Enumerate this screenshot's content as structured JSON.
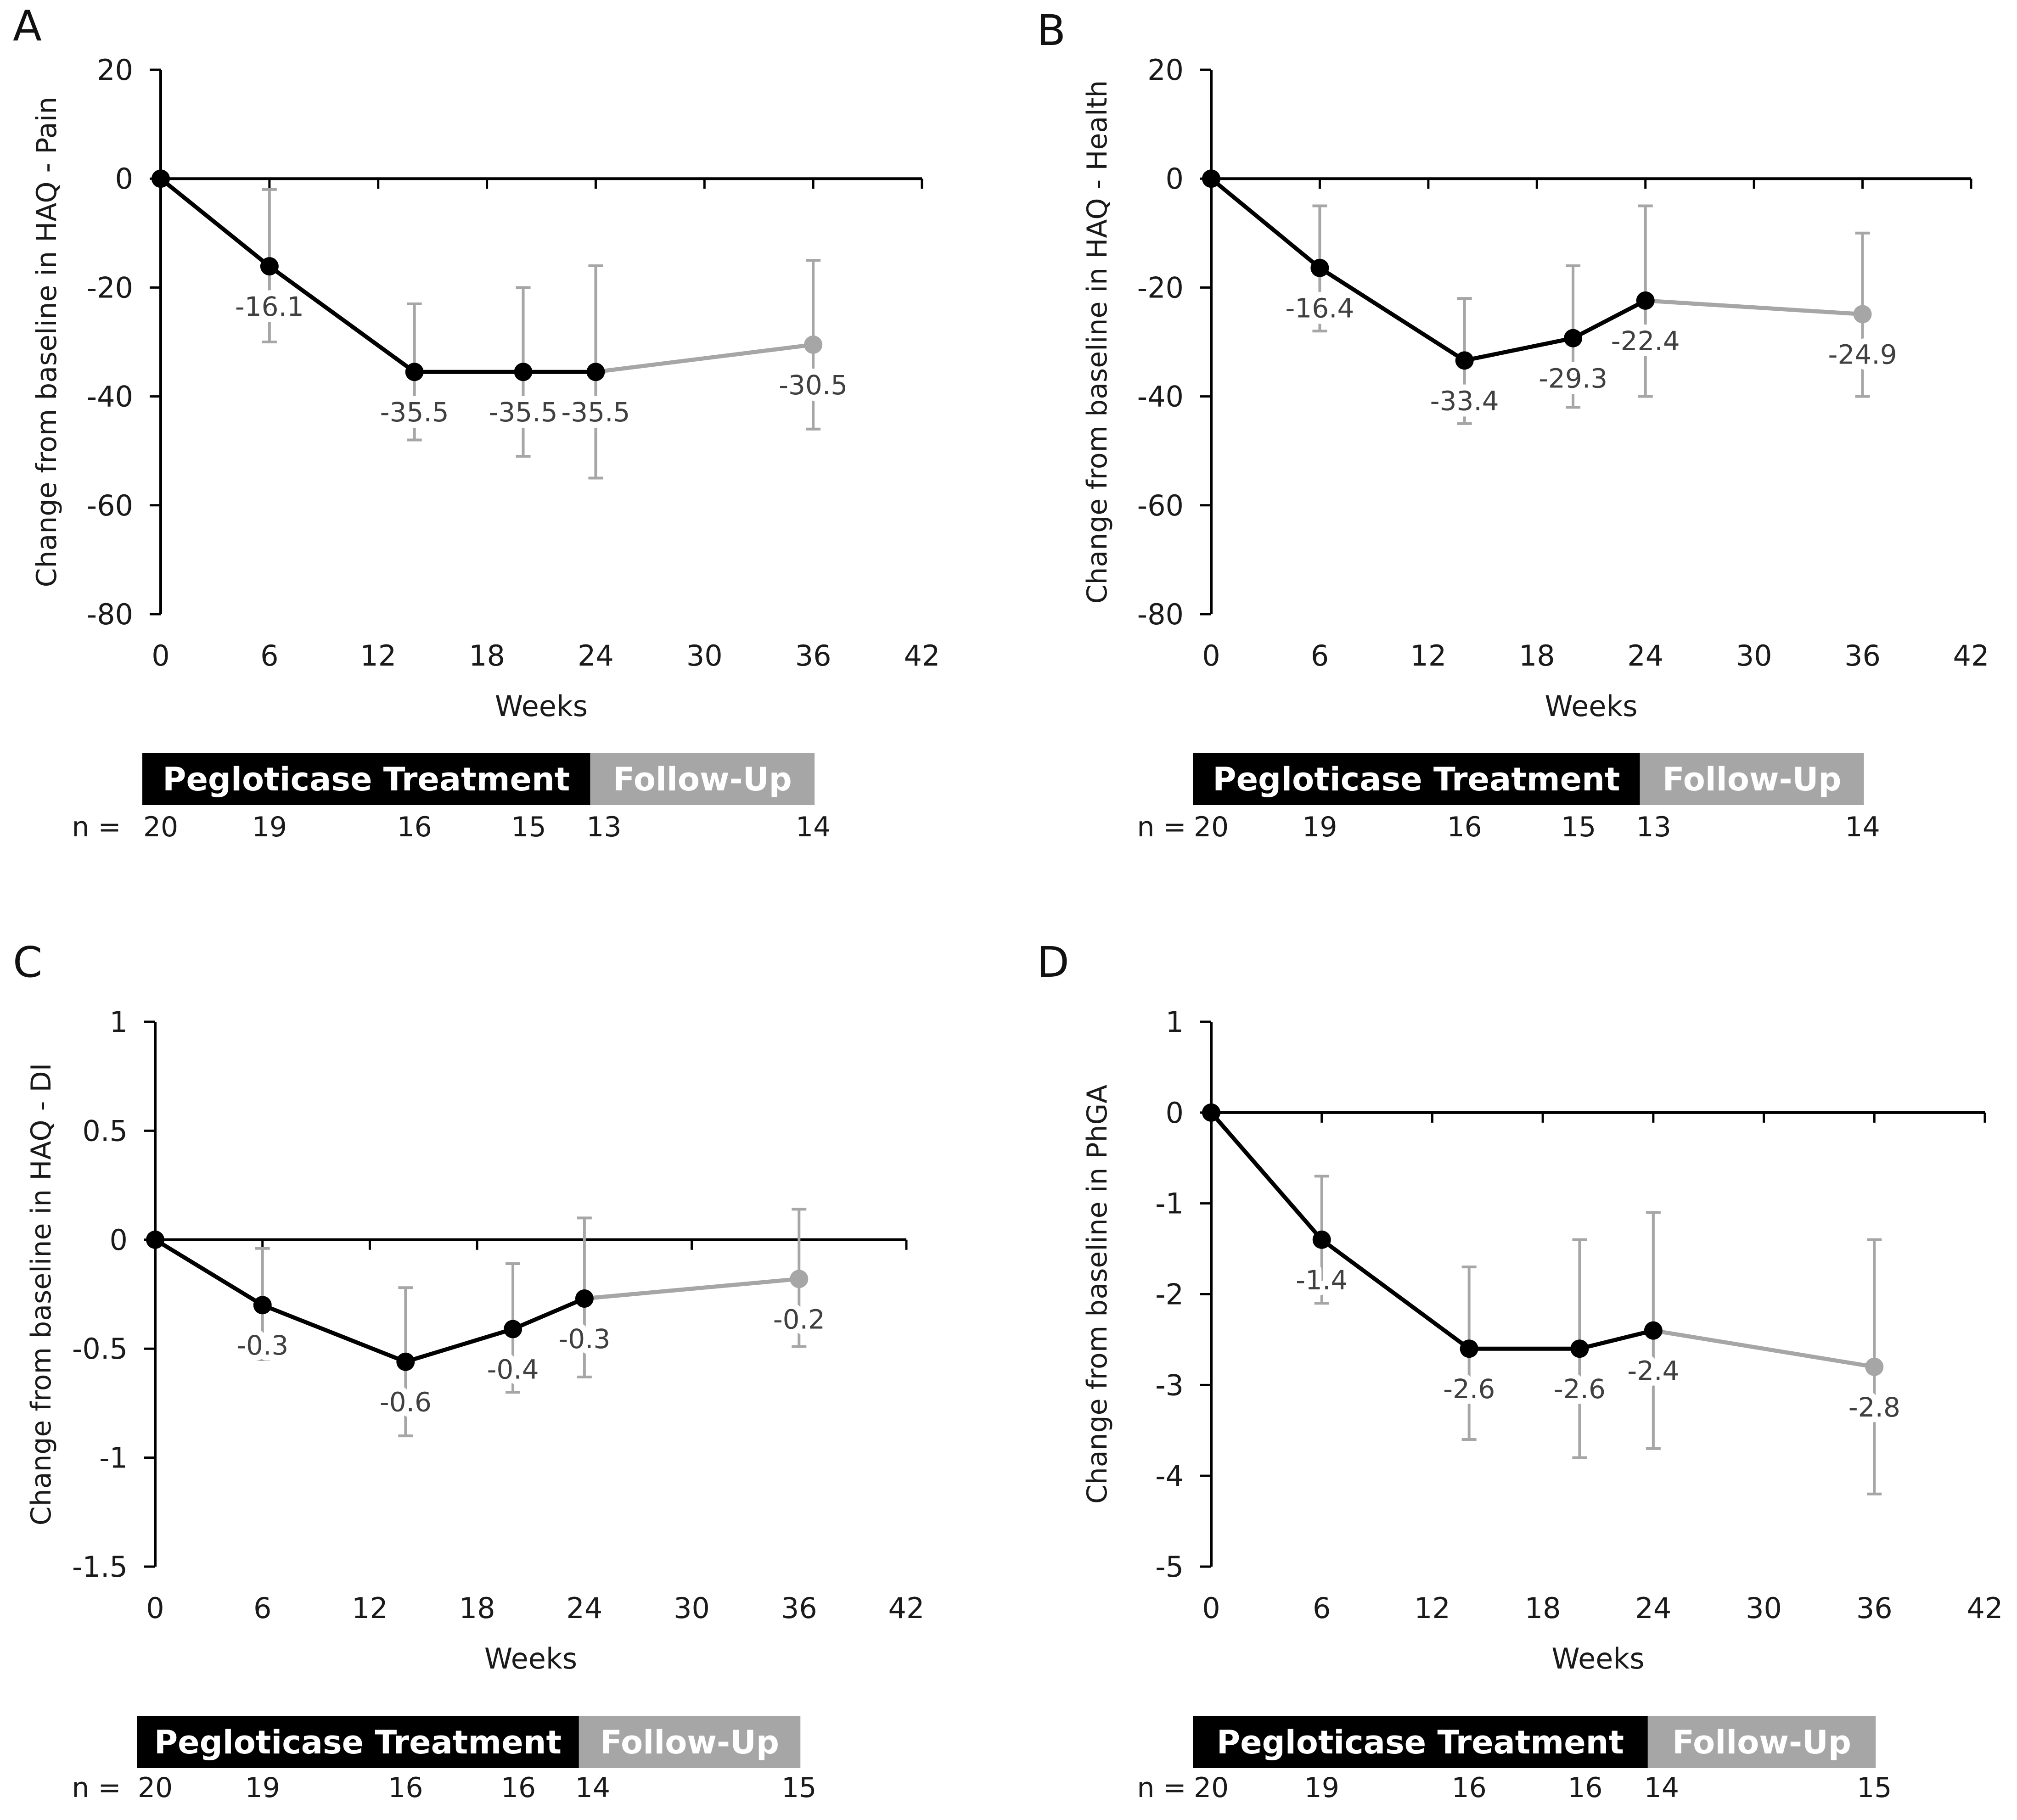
{
  "figure": {
    "x_axis_label": "Weeks",
    "n_prefix": "n ="
  },
  "colors": {
    "treatment": "#000000",
    "followup": "#a6a6a6",
    "errorbar": "#a6a6a6",
    "marker": "#000000",
    "followup_marker": "#a6a6a6"
  },
  "chart_data": [
    {
      "panel": "A",
      "type": "line",
      "ylabel": "Change from baseline in HAQ - Pain",
      "xlabel": "Weeks",
      "xticks": [
        0,
        6,
        12,
        18,
        24,
        30,
        36,
        42
      ],
      "xlim": [
        0,
        42
      ],
      "yticks": [
        "20",
        "0",
        "-20",
        "-40",
        "-60",
        "-80"
      ],
      "ytick_values": [
        20,
        0,
        -20,
        -40,
        -60,
        -80
      ],
      "ylim": [
        -80,
        20
      ],
      "points": [
        {
          "week": 0,
          "value": 0,
          "label": "",
          "err_low": 0,
          "err_high": 0,
          "phase": "treatment"
        },
        {
          "week": 6,
          "value": -16.1,
          "label": "-16.1",
          "err_low": -30,
          "err_high": -2,
          "phase": "treatment"
        },
        {
          "week": 14,
          "value": -35.5,
          "label": "-35.5",
          "err_low": -48,
          "err_high": -23,
          "phase": "treatment"
        },
        {
          "week": 20,
          "value": -35.5,
          "label": "-35.5",
          "err_low": -51,
          "err_high": -20,
          "phase": "treatment"
        },
        {
          "week": 24,
          "value": -35.5,
          "label": "-35.5",
          "err_low": -55,
          "err_high": -16,
          "phase": "treatment"
        },
        {
          "week": 36,
          "value": -30.5,
          "label": "-30.5",
          "err_low": -46,
          "err_high": -15,
          "phase": "followup"
        }
      ],
      "phase_bar": {
        "treatment_label": "Pegloticase Treatment",
        "followup_label": "Follow-Up"
      },
      "n_values": [
        "20",
        "19",
        "16",
        "15",
        "13",
        "14"
      ]
    },
    {
      "panel": "B",
      "type": "line",
      "ylabel": "Change from baseline in HAQ - Health",
      "xlabel": "Weeks",
      "xticks": [
        0,
        6,
        12,
        18,
        24,
        30,
        36,
        42
      ],
      "xlim": [
        0,
        42
      ],
      "yticks": [
        "20",
        "0",
        "-20",
        "-40",
        "-60",
        "-80"
      ],
      "ytick_values": [
        20,
        0,
        -20,
        -40,
        -60,
        -80
      ],
      "ylim": [
        -80,
        20
      ],
      "points": [
        {
          "week": 0,
          "value": 0,
          "label": "",
          "err_low": 0,
          "err_high": 0,
          "phase": "treatment"
        },
        {
          "week": 6,
          "value": -16.4,
          "label": "-16.4",
          "err_low": -28,
          "err_high": -5,
          "phase": "treatment"
        },
        {
          "week": 14,
          "value": -33.4,
          "label": "-33.4",
          "err_low": -45,
          "err_high": -22,
          "phase": "treatment"
        },
        {
          "week": 20,
          "value": -29.3,
          "label": "-29.3",
          "err_low": -42,
          "err_high": -16,
          "phase": "treatment"
        },
        {
          "week": 24,
          "value": -22.4,
          "label": "-22.4",
          "err_low": -40,
          "err_high": -5,
          "phase": "treatment"
        },
        {
          "week": 36,
          "value": -24.9,
          "label": "-24.9",
          "err_low": -40,
          "err_high": -10,
          "phase": "followup"
        }
      ],
      "phase_bar": {
        "treatment_label": "Pegloticase Treatment",
        "followup_label": "Follow-Up"
      },
      "n_values": [
        "20",
        "19",
        "16",
        "15",
        "13",
        "14"
      ]
    },
    {
      "panel": "C",
      "type": "line",
      "ylabel": "Change from baseline in HAQ - DI",
      "xlabel": "Weeks",
      "xticks": [
        0,
        6,
        12,
        18,
        24,
        30,
        36,
        42
      ],
      "xlim": [
        0,
        42
      ],
      "yticks": [
        "1",
        "0.5",
        "0",
        "-0.5",
        "-1",
        "-1.5"
      ],
      "ytick_values": [
        1,
        0.5,
        0,
        -0.5,
        -1,
        -1.5
      ],
      "ylim": [
        -1.5,
        1
      ],
      "points": [
        {
          "week": 0,
          "value": 0,
          "label": "",
          "err_low": 0,
          "err_high": 0,
          "phase": "treatment"
        },
        {
          "week": 6,
          "value": -0.3,
          "label": "-0.3",
          "err_low": -0.55,
          "err_high": -0.04,
          "phase": "treatment"
        },
        {
          "week": 14,
          "value": -0.56,
          "label": "-0.6",
          "err_low": -0.9,
          "err_high": -0.22,
          "phase": "treatment"
        },
        {
          "week": 20,
          "value": -0.41,
          "label": "-0.4",
          "err_low": -0.7,
          "err_high": -0.11,
          "phase": "treatment"
        },
        {
          "week": 24,
          "value": -0.27,
          "label": "-0.3",
          "err_low": -0.63,
          "err_high": 0.1,
          "phase": "treatment"
        },
        {
          "week": 36,
          "value": -0.18,
          "label": "-0.2",
          "err_low": -0.49,
          "err_high": 0.14,
          "phase": "followup"
        }
      ],
      "phase_bar": {
        "treatment_label": "Pegloticase Treatment",
        "followup_label": "Follow-Up"
      },
      "n_values": [
        "20",
        "19",
        "16",
        "16",
        "14",
        "15"
      ]
    },
    {
      "panel": "D",
      "type": "line",
      "ylabel": "Change from baseline in PhGA",
      "xlabel": "Weeks",
      "xticks": [
        0,
        6,
        12,
        18,
        24,
        30,
        36,
        42
      ],
      "xlim": [
        0,
        42
      ],
      "yticks": [
        "1",
        "0",
        "-1",
        "-2",
        "-3",
        "-4",
        "-5"
      ],
      "ytick_values": [
        1,
        0,
        -1,
        -2,
        -3,
        -4,
        -5
      ],
      "ylim": [
        -5,
        1
      ],
      "points": [
        {
          "week": 0,
          "value": 0,
          "label": "",
          "err_low": 0,
          "err_high": 0,
          "phase": "treatment"
        },
        {
          "week": 6,
          "value": -1.4,
          "label": "-1.4",
          "err_low": -2.1,
          "err_high": -0.7,
          "phase": "treatment"
        },
        {
          "week": 14,
          "value": -2.6,
          "label": "-2.6",
          "err_low": -3.6,
          "err_high": -1.7,
          "phase": "treatment"
        },
        {
          "week": 20,
          "value": -2.6,
          "label": "-2.6",
          "err_low": -3.8,
          "err_high": -1.4,
          "phase": "treatment"
        },
        {
          "week": 24,
          "value": -2.4,
          "label": "-2.4",
          "err_low": -3.7,
          "err_high": -1.1,
          "phase": "treatment"
        },
        {
          "week": 36,
          "value": -2.8,
          "label": "-2.8",
          "err_low": -4.2,
          "err_high": -1.4,
          "phase": "followup"
        }
      ],
      "phase_bar": {
        "treatment_label": "Pegloticase Treatment",
        "followup_label": "Follow-Up"
      },
      "n_values": [
        "20",
        "19",
        "16",
        "16",
        "14",
        "15"
      ]
    }
  ]
}
